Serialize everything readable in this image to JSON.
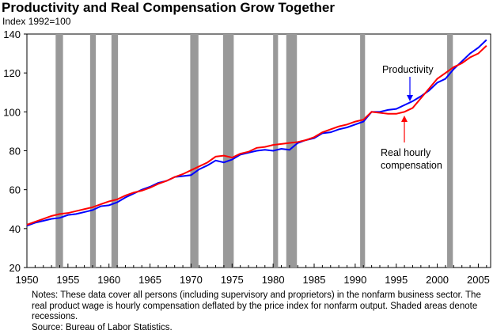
{
  "chart_data": {
    "type": "line",
    "title": "Productivity and Real Compensation Grow Together",
    "ylabel": "Index 1992=100",
    "xlim": [
      1950,
      2006.5
    ],
    "ylim": [
      20,
      140
    ],
    "yticks": [
      20,
      40,
      60,
      80,
      100,
      120,
      140
    ],
    "xticks": [
      1950,
      1955,
      1960,
      1965,
      1970,
      1975,
      1980,
      1985,
      1990,
      1995,
      2000,
      2005
    ],
    "recessions": [
      [
        1953.5,
        1954.4
      ],
      [
        1957.7,
        1958.4
      ],
      [
        1960.3,
        1961.1
      ],
      [
        1969.9,
        1970.9
      ],
      [
        1973.9,
        1975.2
      ],
      [
        1980.0,
        1980.6
      ],
      [
        1981.6,
        1982.9
      ],
      [
        1990.6,
        1991.2
      ],
      [
        2001.2,
        2001.9
      ]
    ],
    "x": [
      1950,
      1951,
      1952,
      1953,
      1954,
      1955,
      1956,
      1957,
      1958,
      1959,
      1960,
      1961,
      1962,
      1963,
      1964,
      1965,
      1966,
      1967,
      1968,
      1969,
      1970,
      1971,
      1972,
      1973,
      1974,
      1975,
      1976,
      1977,
      1978,
      1979,
      1980,
      1981,
      1982,
      1983,
      1984,
      1985,
      1986,
      1987,
      1988,
      1989,
      1990,
      1991,
      1992,
      1993,
      1994,
      1995,
      1996,
      1997,
      1998,
      1999,
      2000,
      2001,
      2002,
      2003,
      2004,
      2005,
      2006
    ],
    "series": [
      {
        "name": "Productivity",
        "color": "#0000ff",
        "values": [
          41.5,
          43,
          44,
          45,
          45.5,
          47,
          47.5,
          48.5,
          49.5,
          51.5,
          52,
          53.5,
          56,
          58,
          60,
          61.5,
          63.5,
          64.5,
          66.5,
          67,
          67.5,
          70.5,
          72.5,
          75,
          74,
          75.5,
          78,
          79,
          80,
          80.5,
          80,
          81,
          80.5,
          84,
          85.5,
          86.5,
          89,
          89.5,
          91,
          92,
          93.5,
          95,
          100,
          100,
          101,
          101.5,
          103.5,
          105.5,
          108,
          111,
          115,
          117,
          122,
          126,
          130,
          133,
          137
        ]
      },
      {
        "name": "Real hourly compensation",
        "color": "#ff0000",
        "values": [
          42,
          43.5,
          45,
          46.5,
          47.5,
          48,
          49,
          50,
          51,
          52.5,
          54,
          55,
          57,
          58.5,
          59.5,
          61,
          63,
          64.5,
          66.5,
          68,
          70,
          72,
          74,
          77,
          77.5,
          76.5,
          78.5,
          79.5,
          81.5,
          82,
          83,
          83.5,
          84,
          84.5,
          85.5,
          87,
          89.5,
          91,
          92.5,
          93.5,
          95,
          96,
          100,
          99.5,
          99,
          99,
          100,
          102,
          107,
          112,
          117,
          120,
          123,
          125,
          128,
          130,
          134
        ]
      }
    ],
    "annotations": [
      {
        "text": "Productivity"
      },
      {
        "text": "Real hourly"
      },
      {
        "text": "compensation"
      }
    ]
  },
  "notes": "Notes: These data cover all persons (including supervisory and proprietors) in the nonfarm business sector.  The real product wage is hourly compensation deflated by the price index for nonfarm output.  Shaded areas denote recessions.",
  "source": "Source: Bureau of Labor Statistics."
}
